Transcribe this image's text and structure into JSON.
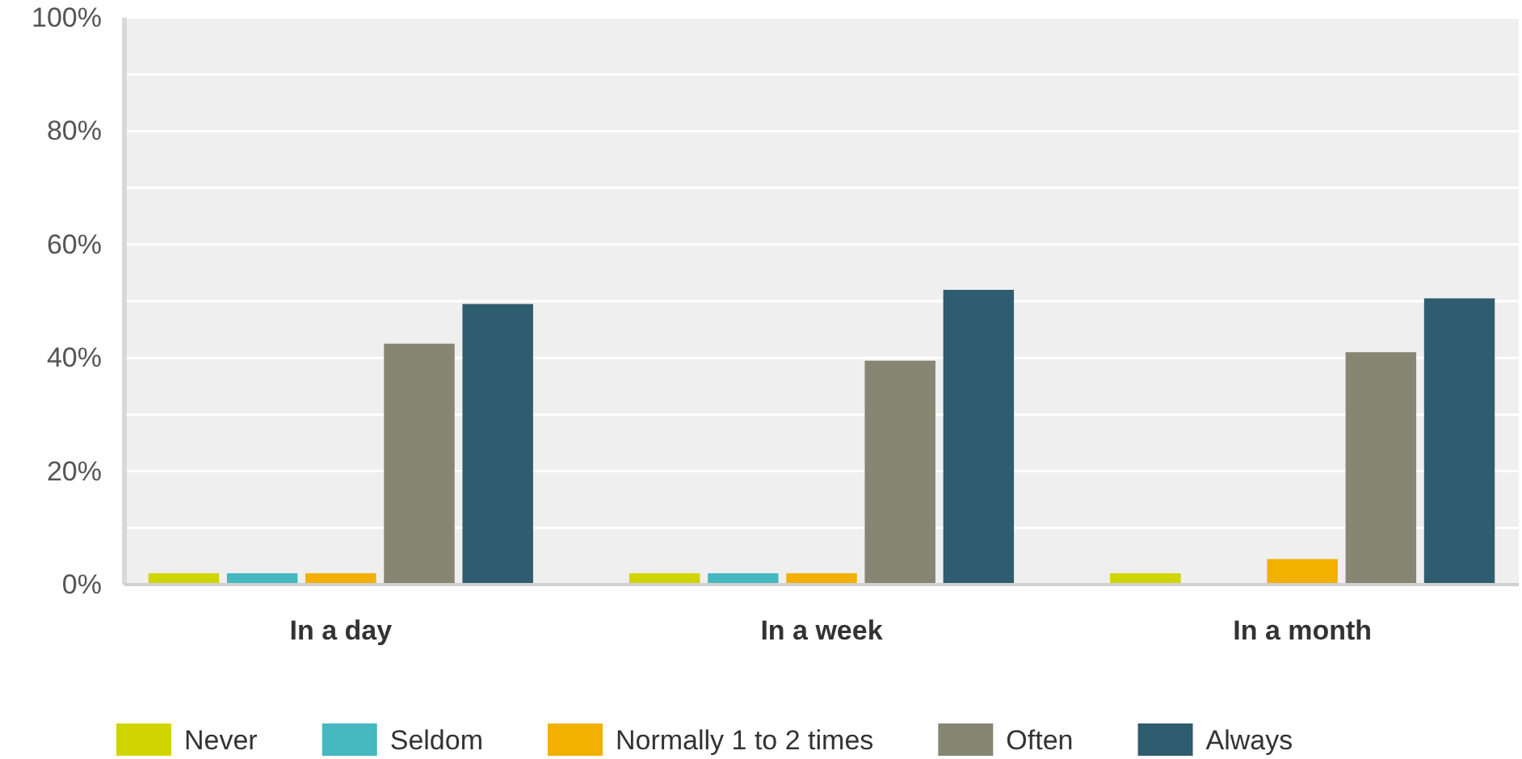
{
  "chart_data": {
    "type": "bar",
    "categories": [
      "In a day",
      "In a week",
      "In a month"
    ],
    "series": [
      {
        "name": "Never",
        "color": "#d0d500",
        "values": [
          2,
          2,
          2
        ]
      },
      {
        "name": "Seldom",
        "color": "#45b8c0",
        "values": [
          2,
          2,
          0
        ]
      },
      {
        "name": "Normally 1 to 2 times",
        "color": "#f2b000",
        "values": [
          2,
          2,
          4.5
        ]
      },
      {
        "name": "Often",
        "color": "#868672",
        "values": [
          42.5,
          39.5,
          41
        ]
      },
      {
        "name": "Always",
        "color": "#2f5c6e",
        "values": [
          49.5,
          52,
          50.5
        ]
      }
    ],
    "ylim": [
      0,
      100
    ],
    "yticks": [
      {
        "value": 0,
        "label": "0%"
      },
      {
        "value": 10,
        "label": null
      },
      {
        "value": 20,
        "label": "20%"
      },
      {
        "value": 30,
        "label": null
      },
      {
        "value": 40,
        "label": "40%"
      },
      {
        "value": 50,
        "label": null
      },
      {
        "value": 60,
        "label": "60%"
      },
      {
        "value": 70,
        "label": null
      },
      {
        "value": 80,
        "label": "80%"
      },
      {
        "value": 90,
        "label": null
      },
      {
        "value": 100,
        "label": "100%"
      }
    ],
    "grid": true,
    "legend": "bottom"
  }
}
